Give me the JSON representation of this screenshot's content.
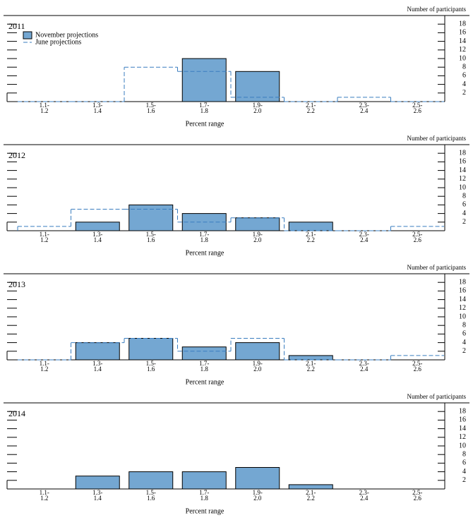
{
  "chart_data": [
    {
      "type": "bar",
      "title": "2011",
      "x_label": "Percent range",
      "y_label": "Number of participants",
      "categories": [
        [
          "1.1-",
          "1.2"
        ],
        [
          "1.3-",
          "1.4"
        ],
        [
          "1.5-",
          "1.6"
        ],
        [
          "1.7-",
          "1.8"
        ],
        [
          "1.9-",
          "2.0"
        ],
        [
          "2.1-",
          "2.2"
        ],
        [
          "2.3-",
          "2.4"
        ],
        [
          "2.5-",
          "2.6"
        ]
      ],
      "series": [
        {
          "name": "November projections",
          "color": "#74a7d2",
          "style": "bar",
          "values": [
            0,
            0,
            0,
            10,
            7,
            0,
            0,
            0
          ]
        },
        {
          "name": "June projections",
          "color": "#3a7dbf",
          "style": "dashed-step",
          "values": [
            0,
            0,
            8,
            7,
            1,
            0,
            1,
            0
          ]
        }
      ],
      "ylim": [
        0,
        20
      ],
      "yticks": [
        2,
        4,
        6,
        8,
        10,
        12,
        14,
        16,
        18
      ],
      "legend": "upper left"
    },
    {
      "type": "bar",
      "title": "2012",
      "x_label": "Percent range",
      "y_label": "Number of participants",
      "categories": [
        [
          "1.1-",
          "1.2"
        ],
        [
          "1.3-",
          "1.4"
        ],
        [
          "1.5-",
          "1.6"
        ],
        [
          "1.7-",
          "1.8"
        ],
        [
          "1.9-",
          "2.0"
        ],
        [
          "2.1-",
          "2.2"
        ],
        [
          "2.3-",
          "2.4"
        ],
        [
          "2.5-",
          "2.6"
        ]
      ],
      "series": [
        {
          "name": "November projections",
          "color": "#74a7d2",
          "style": "bar",
          "values": [
            0,
            2,
            6,
            4,
            3,
            2,
            0,
            0
          ]
        },
        {
          "name": "June projections",
          "color": "#3a7dbf",
          "style": "dashed-step",
          "values": [
            1,
            5,
            5,
            2,
            3,
            0,
            0,
            1
          ]
        }
      ],
      "ylim": [
        0,
        20
      ],
      "yticks": [
        2,
        4,
        6,
        8,
        10,
        12,
        14,
        16,
        18
      ]
    },
    {
      "type": "bar",
      "title": "2013",
      "x_label": "Percent range",
      "y_label": "Number of participants",
      "categories": [
        [
          "1.1-",
          "1.2"
        ],
        [
          "1.3-",
          "1.4"
        ],
        [
          "1.5-",
          "1.6"
        ],
        [
          "1.7-",
          "1.8"
        ],
        [
          "1.9-",
          "2.0"
        ],
        [
          "2.1-",
          "2.2"
        ],
        [
          "2.3-",
          "2.4"
        ],
        [
          "2.5-",
          "2.6"
        ]
      ],
      "series": [
        {
          "name": "November projections",
          "color": "#74a7d2",
          "style": "bar",
          "values": [
            0,
            4,
            5,
            3,
            4,
            1,
            0,
            0
          ]
        },
        {
          "name": "June projections",
          "color": "#3a7dbf",
          "style": "dashed-step",
          "values": [
            0,
            4,
            5,
            2,
            5,
            0,
            0,
            1
          ]
        }
      ],
      "ylim": [
        0,
        20
      ],
      "yticks": [
        2,
        4,
        6,
        8,
        10,
        12,
        14,
        16,
        18
      ]
    },
    {
      "type": "bar",
      "title": "2014",
      "x_label": "Percent range",
      "y_label": "Number of participants",
      "categories": [
        [
          "1.1-",
          "1.2"
        ],
        [
          "1.3-",
          "1.4"
        ],
        [
          "1.5-",
          "1.6"
        ],
        [
          "1.7-",
          "1.8"
        ],
        [
          "1.9-",
          "2.0"
        ],
        [
          "2.1-",
          "2.2"
        ],
        [
          "2.3-",
          "2.4"
        ],
        [
          "2.5-",
          "2.6"
        ]
      ],
      "series": [
        {
          "name": "November projections",
          "color": "#74a7d2",
          "style": "bar",
          "values": [
            0,
            3,
            4,
            4,
            5,
            1,
            0,
            0
          ]
        }
      ],
      "ylim": [
        0,
        20
      ],
      "yticks": [
        2,
        4,
        6,
        8,
        10,
        12,
        14,
        16,
        18
      ]
    }
  ]
}
